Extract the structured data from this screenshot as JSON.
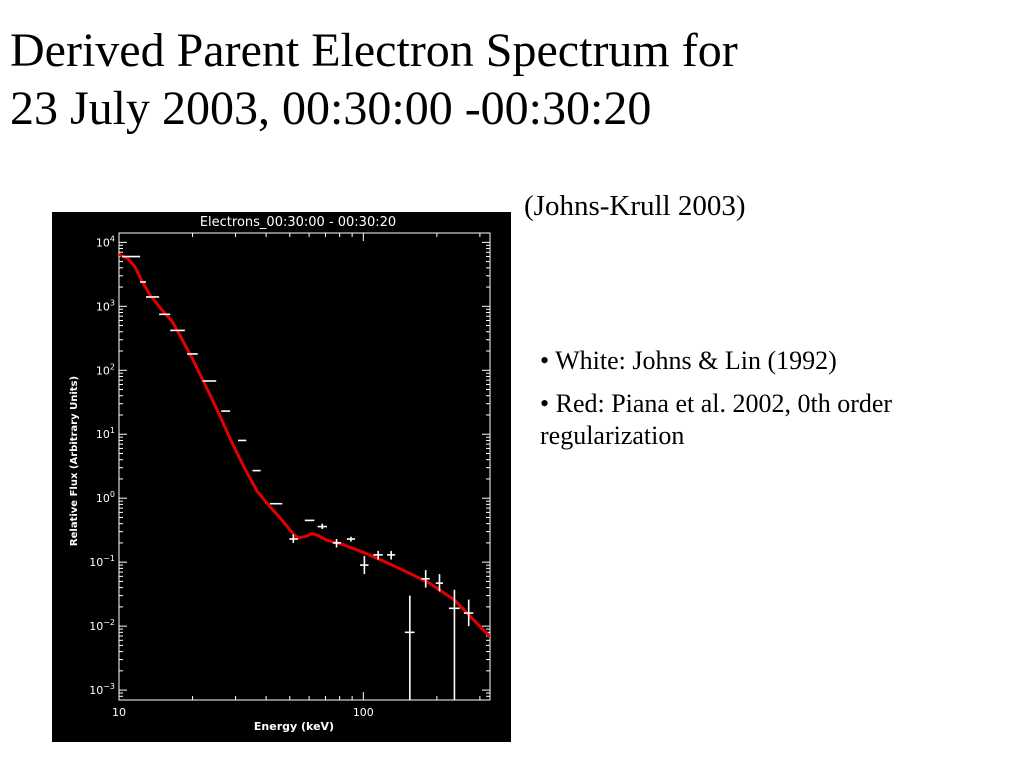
{
  "slide": {
    "title_lines": [
      "Derived Parent Electron Spectrum for",
      "23 July 2003, 00:30:00 -00:30:20"
    ],
    "citation": "(Johns-Krull 2003)",
    "bullets": [
      "• White: Johns & Lin (1992)",
      "• Red: Piana et al. 2002, 0th order regularization"
    ]
  },
  "colors": {
    "plot_background": "#000000",
    "white_series": "#ffffff",
    "red_series": "#e00000"
  },
  "chart_data": {
    "type": "line",
    "title": "Electrons_00:30:00 - 00:30:20",
    "xlabel": "Energy (keV)",
    "ylabel": "Relative Flux (Arbitrary Units)",
    "x_scale": "log",
    "y_scale": "log",
    "xlim": [
      10,
      330
    ],
    "ylim": [
      0.0007,
      14000
    ],
    "x_ticks": [
      {
        "value": 10,
        "label": "10"
      },
      {
        "value": 100,
        "label": "100"
      }
    ],
    "y_ticks": [
      {
        "value": 10000,
        "base": "10",
        "exp": "4"
      },
      {
        "value": 1000,
        "base": "10",
        "exp": "3"
      },
      {
        "value": 100,
        "base": "10",
        "exp": "2"
      },
      {
        "value": 10,
        "base": "10",
        "exp": "1"
      },
      {
        "value": 1,
        "base": "10",
        "exp": "0"
      },
      {
        "value": 0.1,
        "base": "10",
        "exp": "−1"
      },
      {
        "value": 0.01,
        "base": "10",
        "exp": "−2"
      },
      {
        "value": 0.001,
        "base": "10",
        "exp": "−3"
      }
    ],
    "legend": "none",
    "grid": false,
    "series": [
      {
        "name": "White: Johns & Lin (1992)",
        "style": "points with error bars",
        "color": "#ffffff",
        "points": [
          {
            "x": 11.2,
            "xlo": 10.3,
            "xhi": 12.2,
            "y": 6000,
            "ylo": 6000,
            "yhi": 6000
          },
          {
            "x": 12.5,
            "xlo": 12.2,
            "xhi": 12.9,
            "y": 2400,
            "ylo": 2400,
            "yhi": 2400
          },
          {
            "x": 13.7,
            "xlo": 12.9,
            "xhi": 14.6,
            "y": 1400,
            "ylo": 1400,
            "yhi": 1400
          },
          {
            "x": 15.4,
            "xlo": 14.6,
            "xhi": 16.2,
            "y": 750,
            "ylo": 750,
            "yhi": 750
          },
          {
            "x": 17.3,
            "xlo": 16.2,
            "xhi": 18.6,
            "y": 420,
            "ylo": 420,
            "yhi": 420
          },
          {
            "x": 20.0,
            "xlo": 19.0,
            "xhi": 21.0,
            "y": 180,
            "ylo": 180,
            "yhi": 180
          },
          {
            "x": 23.4,
            "xlo": 22.0,
            "xhi": 25.0,
            "y": 68,
            "ylo": 68,
            "yhi": 68
          },
          {
            "x": 27.3,
            "xlo": 26.2,
            "xhi": 28.5,
            "y": 23,
            "ylo": 23,
            "yhi": 23
          },
          {
            "x": 31.8,
            "xlo": 30.7,
            "xhi": 33.2,
            "y": 8,
            "ylo": 8,
            "yhi": 8
          },
          {
            "x": 36.5,
            "xlo": 35.2,
            "xhi": 38.0,
            "y": 2.7,
            "ylo": 2.7,
            "yhi": 2.7
          },
          {
            "x": 43.9,
            "xlo": 41.5,
            "xhi": 46.6,
            "y": 0.82,
            "ylo": 0.82,
            "yhi": 0.82
          },
          {
            "x": 51.7,
            "xlo": 49.8,
            "xhi": 54.0,
            "y": 0.23,
            "ylo": 0.2,
            "yhi": 0.27
          },
          {
            "x": 60.2,
            "xlo": 57.6,
            "xhi": 63.0,
            "y": 0.45,
            "ylo": 0.45,
            "yhi": 0.45
          },
          {
            "x": 67.9,
            "xlo": 65.0,
            "xhi": 71.0,
            "y": 0.36,
            "ylo": 0.33,
            "yhi": 0.4
          },
          {
            "x": 77.7,
            "xlo": 75.0,
            "xhi": 81.0,
            "y": 0.2,
            "ylo": 0.17,
            "yhi": 0.23
          },
          {
            "x": 89.0,
            "xlo": 85.6,
            "xhi": 92.5,
            "y": 0.23,
            "ylo": 0.21,
            "yhi": 0.25
          },
          {
            "x": 101.0,
            "xlo": 97.0,
            "xhi": 105.0,
            "y": 0.09,
            "ylo": 0.065,
            "yhi": 0.125
          },
          {
            "x": 115.0,
            "xlo": 110.0,
            "xhi": 120.0,
            "y": 0.13,
            "ylo": 0.11,
            "yhi": 0.15
          },
          {
            "x": 130.0,
            "xlo": 125.0,
            "xhi": 135.0,
            "y": 0.13,
            "ylo": 0.11,
            "yhi": 0.15
          },
          {
            "x": 155.0,
            "xlo": 148.0,
            "xhi": 162.0,
            "y": 0.008,
            "ylo": 0.0007,
            "yhi": 0.03
          },
          {
            "x": 180.0,
            "xlo": 173.0,
            "xhi": 187.0,
            "y": 0.055,
            "ylo": 0.04,
            "yhi": 0.075
          },
          {
            "x": 205.0,
            "xlo": 198.0,
            "xhi": 212.0,
            "y": 0.047,
            "ylo": 0.035,
            "yhi": 0.065
          },
          {
            "x": 236.0,
            "xlo": 224.0,
            "xhi": 248.0,
            "y": 0.019,
            "ylo": 0.0007,
            "yhi": 0.037
          },
          {
            "x": 270.0,
            "xlo": 258.0,
            "xhi": 282.0,
            "y": 0.016,
            "ylo": 0.01,
            "yhi": 0.026
          }
        ]
      },
      {
        "name": "Red: Piana et al. 2002, 0th order regularization",
        "style": "line",
        "color": "#e00000",
        "points": [
          {
            "x": 10.0,
            "y": 6500
          },
          {
            "x": 10.9,
            "y": 5500
          },
          {
            "x": 11.6,
            "y": 4200
          },
          {
            "x": 12.4,
            "y": 2500
          },
          {
            "x": 13.4,
            "y": 1500
          },
          {
            "x": 14.9,
            "y": 900
          },
          {
            "x": 16.5,
            "y": 580
          },
          {
            "x": 18.0,
            "y": 320
          },
          {
            "x": 20.0,
            "y": 150
          },
          {
            "x": 22.5,
            "y": 60
          },
          {
            "x": 25.5,
            "y": 22
          },
          {
            "x": 28.7,
            "y": 8
          },
          {
            "x": 32.3,
            "y": 3.2
          },
          {
            "x": 36.7,
            "y": 1.3
          },
          {
            "x": 40.7,
            "y": 0.8
          },
          {
            "x": 45.5,
            "y": 0.5
          },
          {
            "x": 51.5,
            "y": 0.28
          },
          {
            "x": 54.0,
            "y": 0.24
          },
          {
            "x": 57.7,
            "y": 0.25
          },
          {
            "x": 61.6,
            "y": 0.28
          },
          {
            "x": 65.5,
            "y": 0.26
          },
          {
            "x": 71.0,
            "y": 0.22
          },
          {
            "x": 82.2,
            "y": 0.19
          },
          {
            "x": 101.0,
            "y": 0.14
          },
          {
            "x": 120.0,
            "y": 0.105
          },
          {
            "x": 150.0,
            "y": 0.071
          },
          {
            "x": 188.0,
            "y": 0.046
          },
          {
            "x": 235.0,
            "y": 0.026
          },
          {
            "x": 280.0,
            "y": 0.013
          },
          {
            "x": 330.0,
            "y": 0.0068
          }
        ]
      }
    ]
  }
}
